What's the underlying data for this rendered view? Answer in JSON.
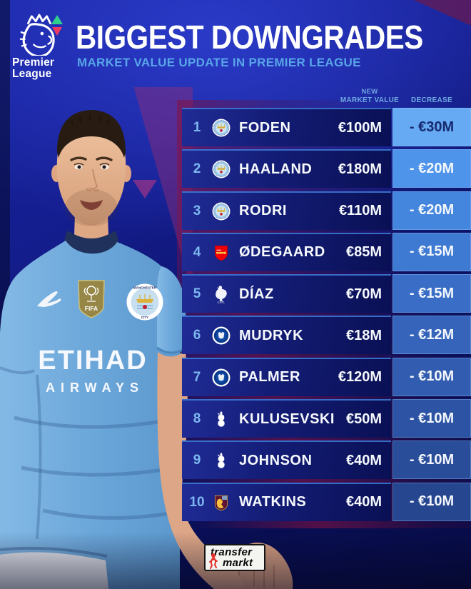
{
  "header": {
    "league_line1": "Premier",
    "league_line2": "League",
    "title": "BIGGEST DOWNGRADES",
    "subtitle": "MARKET VALUE UPDATE IN PREMIER LEAGUE"
  },
  "colors": {
    "up_arrow": "#2fcf8c",
    "down_arrow": "#ec3a64",
    "subtitle": "#58a6e8",
    "row_navy_left": "#202c96",
    "row_navy_right": "#0a1054",
    "header_label": "#6fa8e0",
    "rank": "#7db7ef"
  },
  "player": {
    "shirt_sponsor_line1": "ETIHAD",
    "shirt_sponsor_line2": "AIRWAYS",
    "chest_badge_label": "FIFA",
    "club_badge_line1": "MANCHESTER",
    "club_badge_line2": "CITY"
  },
  "table": {
    "columns": {
      "value_line1": "NEW",
      "value_line2": "MARKET VALUE",
      "decrease": "DECREASE"
    },
    "rows": [
      {
        "rank": "1",
        "club": "man-city",
        "name": "FODEN",
        "value": "€100M",
        "decrease": "- €30M",
        "cell_bg": "#66aaf3",
        "cell_fg": "#16296f"
      },
      {
        "rank": "2",
        "club": "man-city",
        "name": "HAALAND",
        "value": "€180M",
        "decrease": "- €20M",
        "cell_bg": "#4e94ea",
        "cell_fg": "#f4f8fd"
      },
      {
        "rank": "3",
        "club": "man-city",
        "name": "RODRI",
        "value": "€110M",
        "decrease": "- €20M",
        "cell_bg": "#4486de",
        "cell_fg": "#f4f8fd"
      },
      {
        "rank": "4",
        "club": "arsenal",
        "name": "ØDEGAARD",
        "value": "€85M",
        "decrease": "- €15M",
        "cell_bg": "#3e79d2",
        "cell_fg": "#f4f8fd"
      },
      {
        "rank": "5",
        "club": "liverpool",
        "name": "DÍAZ",
        "value": "€70M",
        "decrease": "- €15M",
        "cell_bg": "#3a6ec6",
        "cell_fg": "#f4f8fd"
      },
      {
        "rank": "6",
        "club": "chelsea",
        "name": "MUDRYK",
        "value": "€18M",
        "decrease": "- €12M",
        "cell_bg": "#3564ba",
        "cell_fg": "#f4f8fd"
      },
      {
        "rank": "7",
        "club": "chelsea",
        "name": "PALMER",
        "value": "€120M",
        "decrease": "- €10M",
        "cell_bg": "#315caf",
        "cell_fg": "#f4f8fd"
      },
      {
        "rank": "8",
        "club": "tottenham",
        "name": "KULUSEVSKI",
        "value": "€50M",
        "decrease": "- €10M",
        "cell_bg": "#2d54a4",
        "cell_fg": "#f4f8fd"
      },
      {
        "rank": "9",
        "club": "tottenham",
        "name": "JOHNSON",
        "value": "€40M",
        "decrease": "- €10M",
        "cell_bg": "#2a4d9a",
        "cell_fg": "#f4f8fd"
      },
      {
        "rank": "10",
        "club": "aston-villa",
        "name": "WATKINS",
        "value": "€40M",
        "decrease": "- €10M",
        "cell_bg": "#264690",
        "cell_fg": "#f4f8fd"
      }
    ]
  },
  "footer": {
    "brand_line1": "transfer",
    "brand_line2": "markt"
  }
}
